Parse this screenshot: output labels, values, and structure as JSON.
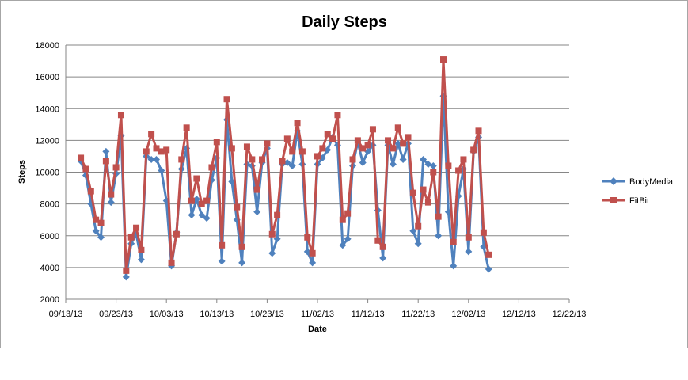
{
  "chart_data": {
    "type": "line",
    "title": "Daily Steps",
    "xlabel": "Date",
    "ylabel": "Steps",
    "ylim": [
      2000,
      18000
    ],
    "yticks": [
      "2000",
      "4000",
      "6000",
      "8000",
      "10000",
      "12000",
      "14000",
      "16000",
      "18000"
    ],
    "xticks": [
      "09/13/13",
      "09/23/13",
      "10/03/13",
      "10/13/13",
      "10/23/13",
      "11/02/13",
      "11/12/13",
      "11/22/13",
      "12/02/13",
      "12/12/13",
      "12/22/13"
    ],
    "x_start": "2013-09-13",
    "x_end_days": 100,
    "grid": "horizontal",
    "legend": "right",
    "x_day_offset_start": 3,
    "series": [
      {
        "name": "BodyMedia",
        "color": "#4f81bd",
        "marker": "diamond",
        "values": [
          10700,
          9800,
          8000,
          6300,
          5900,
          11300,
          8100,
          9900,
          12300,
          3400,
          5500,
          6100,
          4500,
          11000,
          10800,
          10800,
          10100,
          8200,
          4100,
          6200,
          10200,
          11500,
          7300,
          8300,
          7300,
          7100,
          9500,
          10900,
          4400,
          13300,
          9400,
          7000,
          4300,
          10500,
          10400,
          7500,
          10600,
          11500,
          4900,
          5800,
          10500,
          10600,
          10400,
          12600,
          10500,
          5000,
          4300,
          10500,
          10900,
          11400,
          12200,
          11700,
          5400,
          5800,
          10400,
          11900,
          10600,
          11300,
          11700,
          7600,
          4600,
          11700,
          10500,
          11800,
          10800,
          11800,
          6300,
          5500,
          10800,
          10500,
          10400,
          6000,
          14800,
          7500,
          4100,
          8500,
          10200,
          5000,
          11300,
          12200,
          5300,
          3900
        ]
      },
      {
        "name": "FitBit",
        "color": "#c0504d",
        "marker": "square",
        "values": [
          10900,
          10200,
          8800,
          7000,
          6800,
          10700,
          8600,
          10300,
          13600,
          3800,
          5900,
          6500,
          5100,
          11300,
          12400,
          11500,
          11300,
          11400,
          4300,
          6100,
          10800,
          12800,
          8200,
          9600,
          8000,
          8200,
          10300,
          11900,
          5400,
          14600,
          11500,
          7800,
          5300,
          11600,
          10800,
          8900,
          10800,
          11800,
          6100,
          7300,
          10700,
          12100,
          11300,
          13100,
          11300,
          5900,
          4900,
          11000,
          11500,
          12400,
          12100,
          13600,
          7000,
          7400,
          10800,
          12000,
          11500,
          11700,
          12700,
          5700,
          5300,
          12000,
          11500,
          12800,
          11800,
          12200,
          8700,
          6600,
          8900,
          8100,
          10000,
          7200,
          17100,
          10400,
          5600,
          10100,
          10800,
          5900,
          11400,
          12600,
          6200,
          4800
        ]
      }
    ]
  }
}
